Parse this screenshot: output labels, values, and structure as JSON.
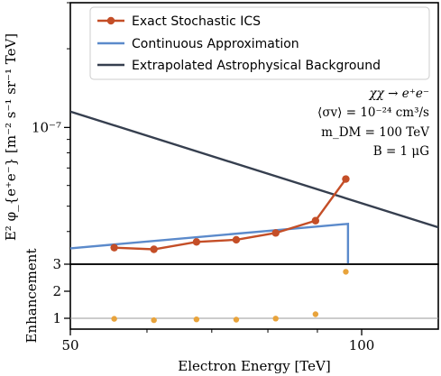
{
  "chart_data": [
    {
      "type": "line",
      "panel": "main",
      "ylabel": "E² φ_{e⁺e⁻} [m⁻² s⁻¹ sr⁻¹ TeV]",
      "yscale": "log",
      "xscale": "log",
      "xlim": [
        50,
        120
      ],
      "ylim": [
        3e-08,
        3e-07
      ],
      "ytick_labels": [
        {
          "value": 1e-07,
          "label": "10⁻⁷"
        }
      ],
      "legend_position": "top",
      "series": [
        {
          "name": "Exact Stochastic ICS",
          "color": "#c44e27",
          "marker": "circle",
          "x": [
            55.5,
            61.0,
            67.5,
            74.2,
            81.5,
            89.6,
            96.3
          ],
          "y": [
            3.47e-08,
            3.42e-08,
            3.65e-08,
            3.72e-08,
            3.95e-08,
            4.4e-08,
            6.35e-08
          ]
        },
        {
          "name": "Continuous Approximation",
          "color": "#5b8acb",
          "marker": "none",
          "x": [
            50,
            96.8,
            96.8
          ],
          "y": [
            3.45e-08,
            4.28e-08,
            3e-08
          ]
        },
        {
          "name": "Extrapolated Astrophysical Background",
          "color": "#363f4f",
          "marker": "none",
          "x": [
            50,
            120
          ],
          "y": [
            1.15e-07,
            4.15e-08
          ]
        }
      ],
      "annotations": [
        "χχ → e⁺e⁻",
        "⟨σv⟩ = 10⁻²⁴ cm³/s",
        "m_DM = 100 TeV",
        "B = 1 μG"
      ]
    },
    {
      "type": "scatter",
      "panel": "ratio",
      "xlabel": "Electron Energy [TeV]",
      "ylabel": "Enhancement",
      "xscale": "log",
      "xlim": [
        50,
        120
      ],
      "ylim": [
        0.6,
        3.0
      ],
      "x_tick_labels": [
        "50",
        "100"
      ],
      "y_tick_labels": [
        "1",
        "2",
        "3"
      ],
      "reference_line": 1,
      "series": [
        {
          "color": "#e8a33b",
          "x": [
            55.5,
            61.0,
            67.5,
            74.2,
            81.5,
            89.6,
            96.3
          ],
          "y": [
            0.98,
            0.93,
            0.96,
            0.95,
            0.99,
            1.15,
            2.72
          ]
        }
      ]
    }
  ]
}
